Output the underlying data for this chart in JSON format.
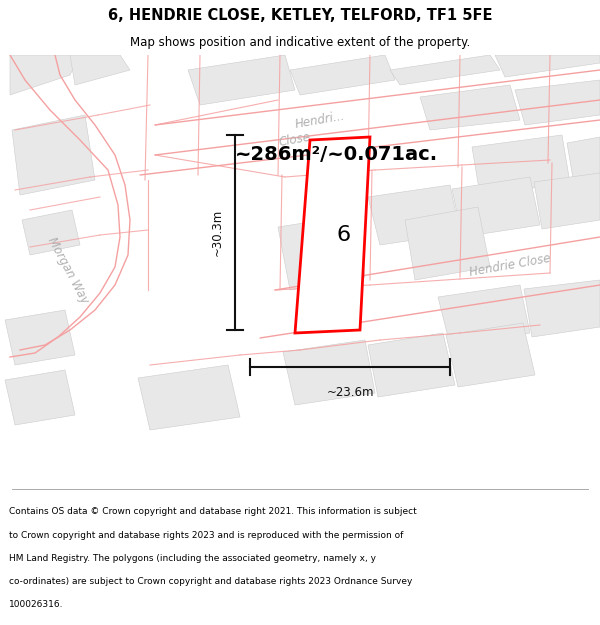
{
  "title": "6, HENDRIE CLOSE, KETLEY, TELFORD, TF1 5FE",
  "subtitle": "Map shows position and indicative extent of the property.",
  "area_label": "~286m²/~0.071ac.",
  "width_label": "~23.6m",
  "height_label": "~30.3m",
  "plot_number": "6",
  "map_bg": "#ffffff",
  "parcel_fill": "#e8e8e8",
  "parcel_edge": "#cccccc",
  "road_line_color": "#f5a0a0",
  "plot_color": "#ff0000",
  "plot_fill": "#ffffff",
  "dim_color": "#111111",
  "street_label_color": "#b0b0b0",
  "footer_lines": [
    "Contains OS data © Crown copyright and database right 2021. This information is subject",
    "to Crown copyright and database rights 2023 and is reproduced with the permission of",
    "HM Land Registry. The polygons (including the associated geometry, namely x, y",
    "co-ordinates) are subject to Crown copyright and database rights 2023 Ordnance Survey",
    "100026316."
  ]
}
